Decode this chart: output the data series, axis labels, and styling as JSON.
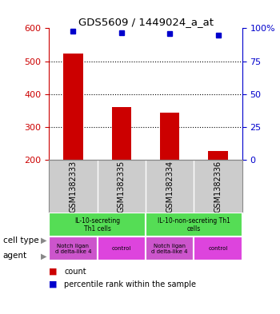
{
  "title": "GDS5609 / 1449024_a_at",
  "samples": [
    "GSM1382333",
    "GSM1382335",
    "GSM1382334",
    "GSM1382336"
  ],
  "counts": [
    523,
    361,
    343,
    227
  ],
  "percentiles": [
    97.5,
    96.5,
    96.0,
    95.0
  ],
  "ylim_left": [
    200,
    600
  ],
  "yticks_left": [
    200,
    300,
    400,
    500,
    600
  ],
  "ylim_right": [
    0,
    100
  ],
  "yticks_right": [
    0,
    25,
    50,
    75,
    100
  ],
  "bar_color": "#cc0000",
  "dot_color": "#0000cc",
  "cell_type_info": [
    {
      "span": [
        0,
        2
      ],
      "label": "IL-10-secreting\nTh1 cells",
      "color": "#55dd55"
    },
    {
      "span": [
        2,
        4
      ],
      "label": "IL-10-non-secreting Th1\ncells",
      "color": "#55dd55"
    }
  ],
  "agent_info": [
    {
      "span": [
        0,
        1
      ],
      "label": "Notch ligan\nd delta-like 4",
      "color": "#cc55cc"
    },
    {
      "span": [
        1,
        2
      ],
      "label": "control",
      "color": "#dd44dd"
    },
    {
      "span": [
        2,
        3
      ],
      "label": "Notch ligan\nd delta-like 4",
      "color": "#cc55cc"
    },
    {
      "span": [
        3,
        4
      ],
      "label": "control",
      "color": "#dd44dd"
    }
  ],
  "label_font_color_left": "#cc0000",
  "label_font_color_right": "#0000cc",
  "bg_color": "#cccccc",
  "sample_row_label": "",
  "cell_type_row_label": "cell type",
  "agent_row_label": "agent"
}
